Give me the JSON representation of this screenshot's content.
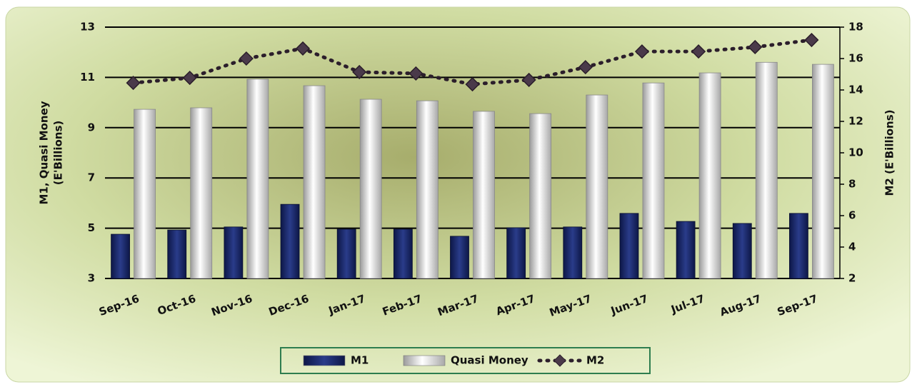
{
  "chart_data": {
    "type": "bar-line",
    "ylabel": [
      "M1, Quasi Money",
      "(E'Billions)"
    ],
    "y2label": "M2 (E'Billions)",
    "categories": [
      "Sep-16",
      "Oct-16",
      "Nov-16",
      "Dec-16",
      "Jan-17",
      "Feb-17",
      "Mar-17",
      "Apr-17",
      "May-17",
      "Jun-17",
      "Jul-17",
      "Aug-17",
      "Sep-17"
    ],
    "series": [
      {
        "name": "M1",
        "color": "#1b2a6b",
        "kind": "bar",
        "values": [
          4.76,
          4.93,
          5.05,
          5.95,
          4.96,
          4.96,
          4.68,
          5.02,
          5.05,
          5.59,
          5.27,
          5.19,
          5.59
        ]
      },
      {
        "name": "Quasi Money",
        "color": "#e8e8e8",
        "kind": "bar",
        "values": [
          9.73,
          9.79,
          10.93,
          10.67,
          10.13,
          10.07,
          9.65,
          9.56,
          10.3,
          10.78,
          11.18,
          11.6,
          11.52
        ]
      },
      {
        "name": "M2",
        "color": "#2b1e2b",
        "kind": "line",
        "axis": "y2",
        "values": [
          14.45,
          14.77,
          16.0,
          16.64,
          15.14,
          15.05,
          14.36,
          14.64,
          15.45,
          16.45,
          16.45,
          16.73,
          17.18
        ]
      }
    ],
    "ylim": [
      3,
      13
    ],
    "yticks": [
      3,
      5,
      7,
      9,
      11,
      13
    ],
    "y2lim": [
      2,
      18
    ],
    "y2ticks": [
      2,
      4,
      6,
      8,
      10,
      12,
      14,
      16,
      18
    ],
    "grid": true,
    "legend": "bottom"
  }
}
